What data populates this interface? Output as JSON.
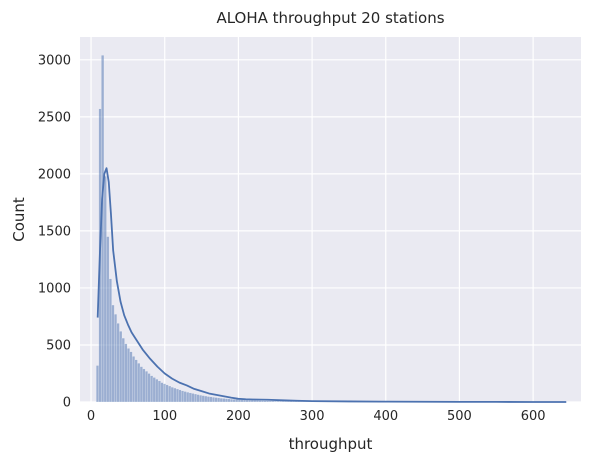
{
  "chart_data": {
    "type": "bar",
    "subtype": "histogram-with-kde",
    "title": "ALOHA throughput 20 stations",
    "xlabel": "throughput",
    "ylabel": "Count",
    "xlim": [
      -15,
      665
    ],
    "ylim": [
      0,
      3200
    ],
    "xticks": [
      0,
      100,
      200,
      300,
      400,
      500,
      600
    ],
    "yticks": [
      0,
      500,
      1000,
      1500,
      2000,
      2500,
      3000
    ],
    "grid": true,
    "style": {
      "plot_background": "#eaeaf2",
      "grid_color": "#ffffff",
      "bar_color": "#4c72b0",
      "bar_opacity": 0.5,
      "kde_color": "#4c72b0"
    },
    "bin_width": 3.5,
    "histogram": {
      "bin_start": [
        7,
        10.5,
        14,
        17.5,
        21,
        24.5,
        28,
        31.5,
        35,
        38.5,
        42,
        45.5,
        49,
        52.5,
        56,
        59.5,
        63,
        66.5,
        70,
        73.5,
        77,
        80.5,
        84,
        87.5,
        91,
        94.5,
        98,
        101.5,
        105,
        108.5,
        112,
        115.5,
        119,
        122.5,
        126,
        129.5,
        133,
        136.5,
        140,
        143.5,
        147,
        150.5,
        154,
        157.5,
        161,
        164.5,
        168,
        171.5,
        175,
        178.5,
        182,
        185.5,
        189,
        192.5,
        196,
        199.5,
        203,
        206.5,
        210,
        213.5,
        217,
        220.5,
        224,
        227.5,
        231,
        234.5,
        238,
        241.5,
        245,
        248.5,
        252,
        255.5,
        259,
        262.5,
        266,
        269.5,
        273,
        276.5,
        280,
        283.5,
        287,
        290.5,
        294,
        297.5,
        301,
        304.5,
        308,
        311.5,
        315,
        318.5,
        322,
        325.5,
        329,
        332.5,
        336,
        339.5,
        343,
        346.5,
        350,
        353.5,
        357,
        360.5,
        364,
        367.5,
        371,
        374.5,
        378,
        381.5,
        385,
        388.5,
        392,
        395.5
      ],
      "counts": [
        320,
        2570,
        3040,
        1980,
        1450,
        1080,
        850,
        770,
        690,
        620,
        560,
        510,
        470,
        440,
        400,
        370,
        340,
        310,
        290,
        270,
        250,
        230,
        215,
        200,
        185,
        170,
        160,
        150,
        140,
        130,
        122,
        114,
        106,
        98,
        92,
        86,
        80,
        75,
        70,
        65,
        60,
        56,
        52,
        48,
        45,
        42,
        39,
        36,
        33,
        31,
        29,
        27,
        25,
        23,
        22,
        20,
        19,
        18,
        17,
        16,
        15,
        14,
        13,
        12,
        11,
        10,
        10,
        9,
        9,
        8,
        8,
        7,
        7,
        6,
        6,
        6,
        5,
        5,
        5,
        4,
        4,
        4,
        4,
        3,
        3,
        3,
        3,
        3,
        2,
        2,
        2,
        2,
        2,
        2,
        2,
        2,
        1,
        1,
        1,
        1,
        1,
        1,
        1,
        1,
        1,
        1,
        1,
        1,
        1,
        1,
        1,
        1
      ]
    },
    "kde": {
      "x": [
        9,
        12,
        15,
        18,
        21,
        24,
        27,
        30,
        35,
        40,
        45,
        50,
        55,
        60,
        70,
        80,
        90,
        100,
        110,
        120,
        130,
        140,
        150,
        160,
        170,
        180,
        190,
        200,
        210,
        220,
        230,
        240,
        260,
        280,
        300,
        350,
        400,
        450,
        500,
        550,
        600,
        645
      ],
      "y": [
        740,
        1300,
        1780,
        2000,
        2050,
        1930,
        1650,
        1330,
        1060,
        880,
        760,
        680,
        610,
        560,
        460,
        380,
        310,
        250,
        205,
        170,
        145,
        115,
        95,
        75,
        62,
        50,
        38,
        28,
        24,
        22,
        21,
        20,
        15,
        11,
        8,
        5,
        3,
        2,
        1,
        1,
        0,
        0
      ]
    }
  }
}
